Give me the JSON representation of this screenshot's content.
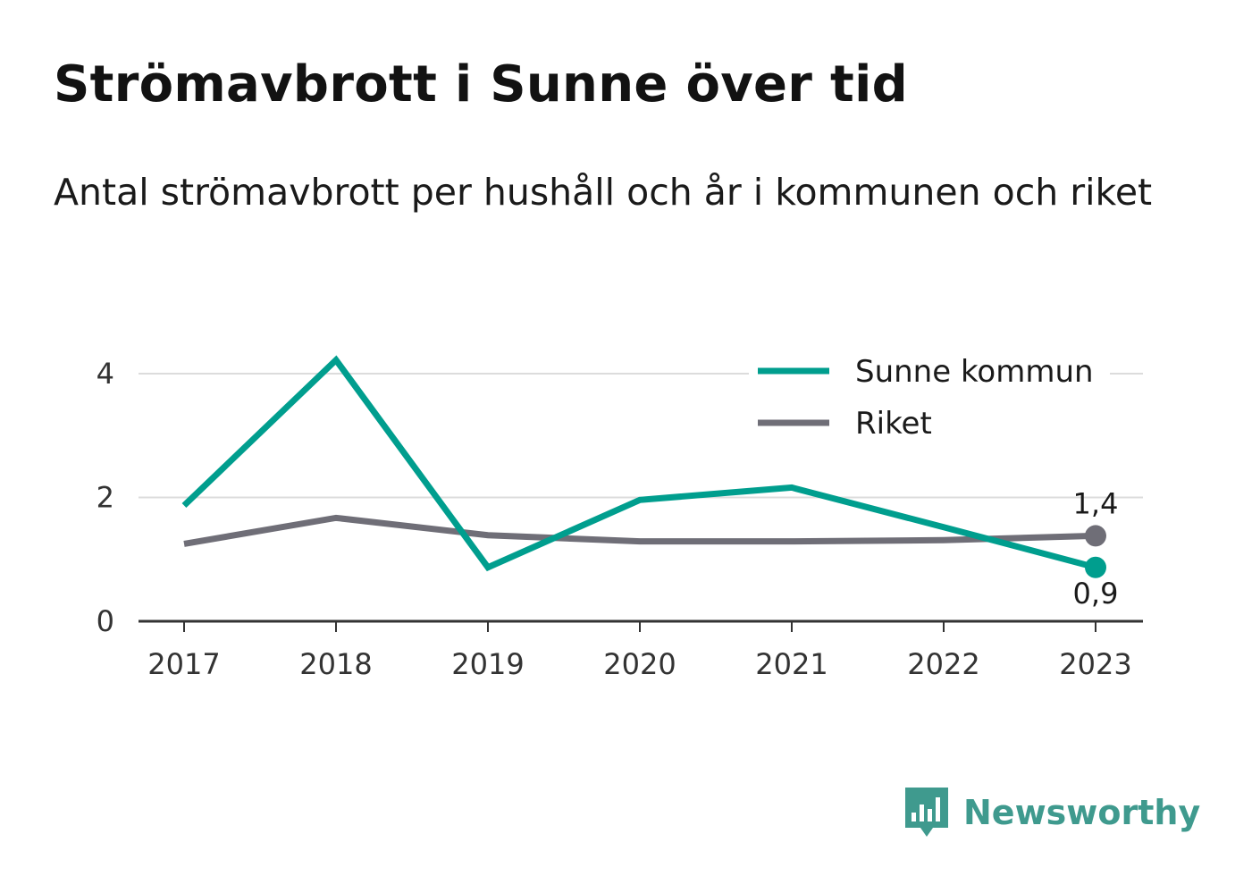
{
  "title": "Strömavbrott i Sunne över tid",
  "subtitle": "Antal strömavbrott per hushåll och år i kommunen och riket",
  "brand": {
    "name": "Newsworthy",
    "icon": "newsworthy-logo-icon",
    "color": "#3f9a8e"
  },
  "chart_data": {
    "type": "line",
    "x": [
      "2017",
      "2018",
      "2019",
      "2020",
      "2021",
      "2022",
      "2023"
    ],
    "yticks": [
      "0",
      "2",
      "4"
    ],
    "ylim": [
      0,
      4
    ],
    "grid": true,
    "legend_position": "top-right",
    "series": [
      {
        "name": "Sunne kommun",
        "color": "#009e8e",
        "values": [
          1.87,
          4.22,
          0.87,
          1.96,
          2.16,
          1.52,
          0.87
        ],
        "end_label": "0,9"
      },
      {
        "name": "Riket",
        "color": "#6f6e77",
        "values": [
          1.25,
          1.67,
          1.39,
          1.29,
          1.29,
          1.31,
          1.38
        ],
        "end_label": "1,4"
      }
    ]
  }
}
